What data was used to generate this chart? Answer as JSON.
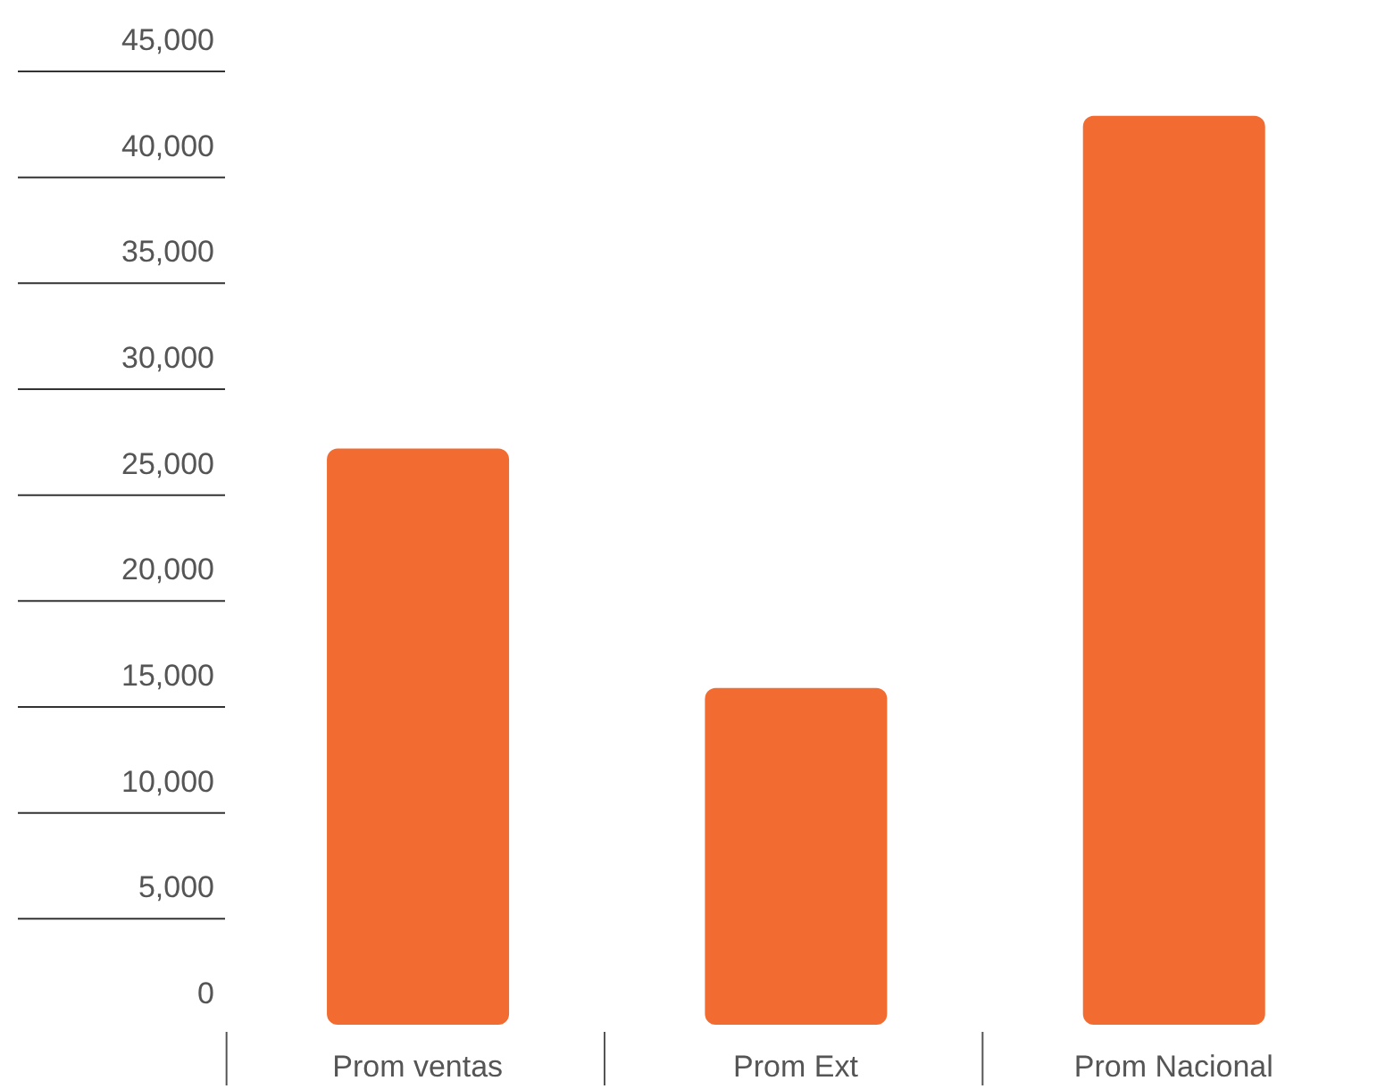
{
  "chart_data": {
    "type": "bar",
    "categories": [
      "Prom ventas",
      "Prom Ext",
      "Prom Nacional"
    ],
    "values": [
      27200,
      15900,
      42900
    ],
    "color": "#f26b30",
    "ylim": [
      0,
      45000
    ],
    "yticks": [
      {
        "value": 0,
        "label": "0"
      },
      {
        "value": 5000,
        "label": "5,000"
      },
      {
        "value": 10000,
        "label": "10,000"
      },
      {
        "value": 15000,
        "label": "15,000"
      },
      {
        "value": 20000,
        "label": "20,000"
      },
      {
        "value": 25000,
        "label": "25,000"
      },
      {
        "value": 30000,
        "label": "30,000"
      },
      {
        "value": 35000,
        "label": "35,000"
      },
      {
        "value": 40000,
        "label": "40,000"
      },
      {
        "value": 45000,
        "label": "45,000"
      }
    ],
    "grid": false,
    "legend": false
  }
}
